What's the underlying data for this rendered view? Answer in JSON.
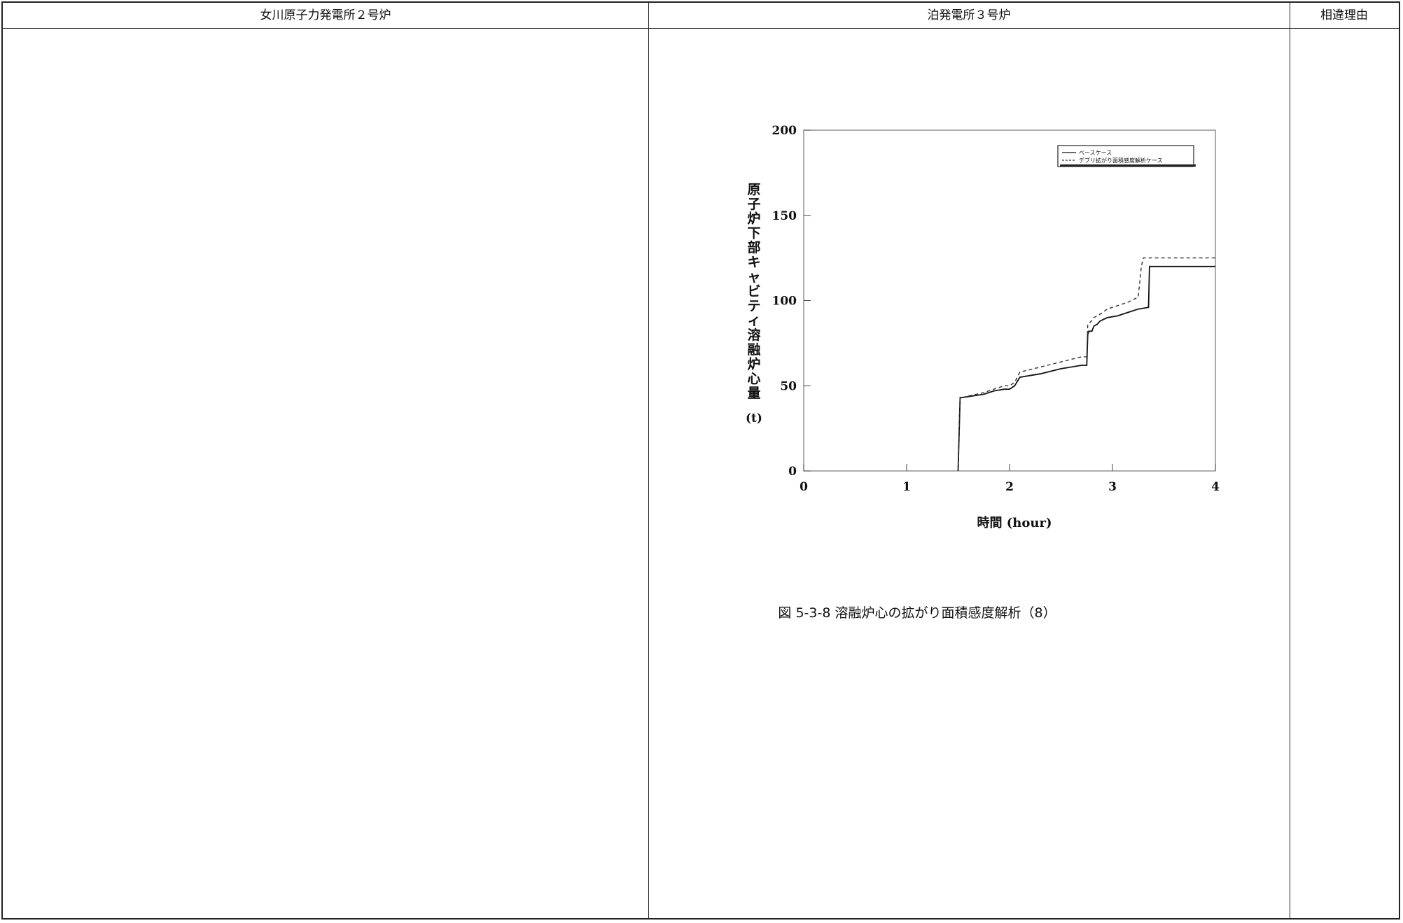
{
  "table": {
    "headers": [
      "女川原子力発電所２号炉",
      "泊発電所３号炉",
      "相違理由"
    ]
  },
  "caption": "図 5-3-8 溶融炉心の拡がり面積感度解析（8）",
  "chart_data": {
    "type": "line",
    "ylabel": "原子炉下部キャビティ溶融炉心量",
    "ylabel_unit": "(t)",
    "xlabel": "時間 (hour)",
    "xlim": [
      0,
      4
    ],
    "ylim": [
      0,
      200
    ],
    "xticks": [
      0,
      1,
      2,
      3,
      4
    ],
    "yticks": [
      0,
      50,
      100,
      150,
      200
    ],
    "legend_position": "top-right",
    "series": [
      {
        "name": "ベースケース",
        "style": "solid",
        "color": "#111111",
        "x": [
          1.5,
          1.52,
          1.53,
          1.75,
          1.85,
          1.95,
          2.0,
          2.05,
          2.1,
          2.3,
          2.5,
          2.7,
          2.75,
          2.76,
          2.77,
          2.8,
          2.82,
          2.85,
          2.88,
          2.95,
          3.05,
          3.15,
          3.25,
          3.35,
          3.36,
          3.37,
          4.0
        ],
        "y": [
          0,
          43,
          43,
          45,
          47,
          48,
          48,
          50,
          55,
          57,
          60,
          62,
          62,
          80,
          82,
          82,
          85,
          86,
          88,
          90,
          91,
          93,
          95,
          96,
          120,
          120,
          120
        ]
      },
      {
        "name": "デブリ拡がり面積感度解析ケース",
        "style": "dashed",
        "color": "#333333",
        "x": [
          1.5,
          1.52,
          1.53,
          1.75,
          1.85,
          1.95,
          2.0,
          2.05,
          2.1,
          2.3,
          2.5,
          2.7,
          2.75,
          2.76,
          2.78,
          2.82,
          2.88,
          2.95,
          3.05,
          3.15,
          3.25,
          3.28,
          3.3,
          4.0
        ],
        "y": [
          0,
          43,
          43,
          46,
          48,
          50,
          50,
          52,
          58,
          61,
          64,
          67,
          67,
          86,
          87,
          90,
          92,
          95,
          97,
          99,
          102,
          120,
          125,
          125
        ]
      }
    ]
  }
}
